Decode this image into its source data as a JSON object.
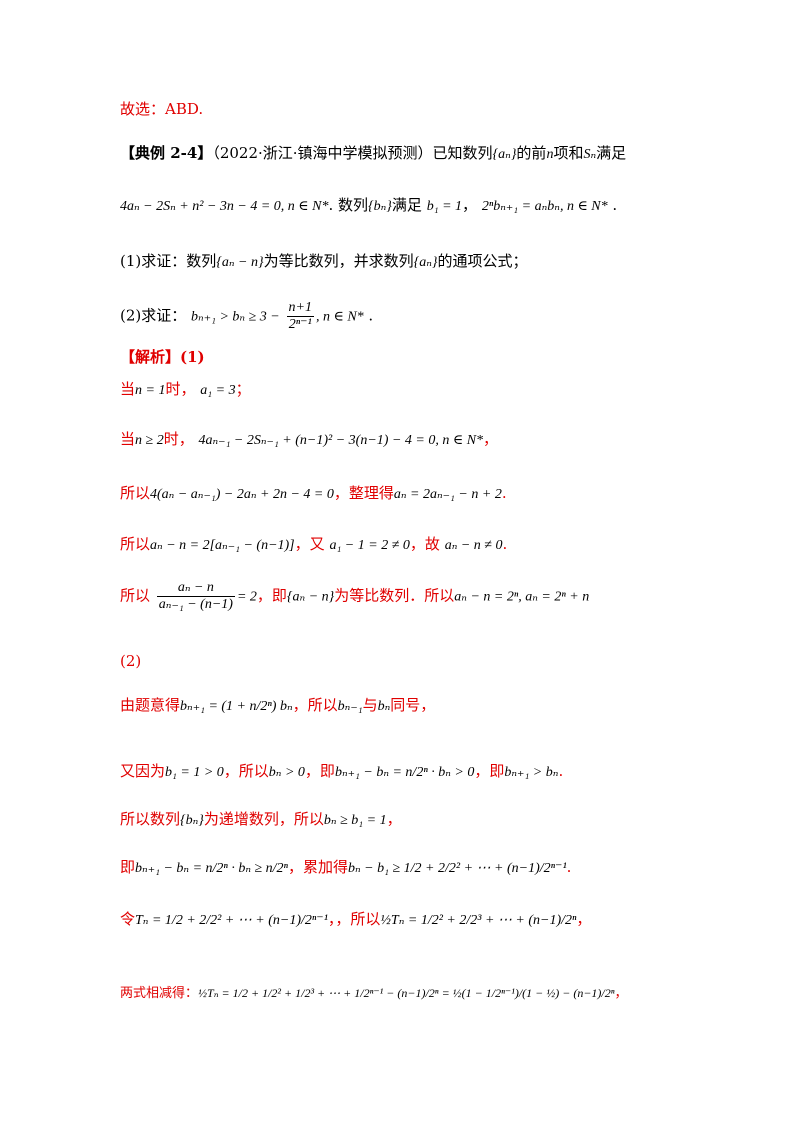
{
  "answer_line": "故选：ABD.",
  "example": {
    "tag": "【典例 2-4】",
    "source": "（2022·浙江·镇海中学模拟预测）已知数列",
    "seq_a": "{aₙ}",
    "mid1": "的前",
    "n": "n",
    "mid2": "项和",
    "S": "Sₙ",
    "end": "满足",
    "cond_formula": "4aₙ − 2Sₙ + n² − 3n − 4 = 0, n ∈ N*",
    "cond_text1": ". 数列",
    "seq_b": "{bₙ}",
    "cond_text2": "满足",
    "b1": "b₁ = 1",
    "rec": "2ⁿbₙ₊₁ = aₙbₙ, n ∈ N*",
    "part1_prefix": "(1)求证：数列",
    "part1_seq": "{aₙ − n}",
    "part1_mid": "为等比数列，并求数列",
    "part1_seq2": "{aₙ}",
    "part1_end": "的通项公式；",
    "part2_prefix": "(2)求证：",
    "part2_formula_a": "bₙ₊₁ > bₙ ≥ 3 −",
    "part2_frac_num": "n+1",
    "part2_frac_den": "2ⁿ⁻¹",
    "part2_formula_b": ", n ∈ N*"
  },
  "solution": {
    "header": "【解析】(1)",
    "l1_a": "当",
    "l1_m1": "n = 1",
    "l1_b": "时，",
    "l1_m2": "a₁ = 3",
    "l1_c": "；",
    "l2_a": "当",
    "l2_m1": "n ≥ 2",
    "l2_b": "时，",
    "l2_m2": "4aₙ₋₁ − 2Sₙ₋₁ + (n−1)² − 3(n−1) − 4 = 0, n ∈ N*",
    "l2_c": "，",
    "l3_a": "所以",
    "l3_m1": "4(aₙ − aₙ₋₁) − 2aₙ + 2n − 4 = 0",
    "l3_b": "，整理得",
    "l3_m2": "aₙ = 2aₙ₋₁ − n + 2",
    "l3_c": ".",
    "l4_a": "所以",
    "l4_m1": "aₙ − n = 2[aₙ₋₁ − (n−1)]",
    "l4_b": "，又",
    "l4_m2": "a₁ − 1 = 2 ≠ 0",
    "l4_c": "，故",
    "l4_m3": "aₙ − n ≠ 0",
    "l4_d": ".",
    "l5_a": "所以",
    "l5_num": "aₙ − n",
    "l5_den": "aₙ₋₁ − (n−1)",
    "l5_eq": "= 2",
    "l5_b": "，即",
    "l5_m1": "{aₙ − n}",
    "l5_c": "为等比数列．所以",
    "l5_m2": "aₙ − n = 2ⁿ, aₙ = 2ⁿ + n",
    "p2": "(2)",
    "l6_a": "由题意得",
    "l6_m1": "bₙ₊₁ = (1 + n/2ⁿ) bₙ",
    "l6_b": "，所以",
    "l6_m2": "bₙ₋₁",
    "l6_c": "与",
    "l6_m3": "bₙ",
    "l6_d": "同号，",
    "l7_a": "又因为",
    "l7_m1": "b₁ = 1 > 0",
    "l7_b": "，所以",
    "l7_m2": "bₙ > 0",
    "l7_c": "，即",
    "l7_m3": "bₙ₊₁ − bₙ = n/2ⁿ · bₙ > 0",
    "l7_d": "，即",
    "l7_m4": "bₙ₊₁ > bₙ",
    "l7_e": ".",
    "l8_a": "所以数列",
    "l8_m1": "{bₙ}",
    "l8_b": "为递增数列，所以",
    "l8_m2": "bₙ ≥ b₁ = 1",
    "l8_c": "，",
    "l9_a": "即",
    "l9_m1": "bₙ₊₁ − bₙ = n/2ⁿ · bₙ ≥ n/2ⁿ",
    "l9_b": "，累加得",
    "l9_m2": "bₙ − b₁ ≥ 1/2 + 2/2² + ⋯ + (n−1)/2ⁿ⁻¹",
    "l9_c": ".",
    "l10_a": "令",
    "l10_m1": "Tₙ = 1/2 + 2/2² + ⋯ + (n−1)/2ⁿ⁻¹",
    "l10_b": "，，所以",
    "l10_m2": "½Tₙ = 1/2² + 2/2³ + ⋯ + (n−1)/2ⁿ",
    "l10_c": "，",
    "l11_a": "两式相减得：",
    "l11_m1": "½Tₙ = 1/2 + 1/2² + 1/2³ + ⋯ + 1/2ⁿ⁻¹ − (n−1)/2ⁿ = ½(1 − 1/2ⁿ⁻¹)/(1 − ½) − (n−1)/2ⁿ",
    "l11_b": "，"
  },
  "colors": {
    "solution": "#e00000",
    "problem": "#000000"
  }
}
